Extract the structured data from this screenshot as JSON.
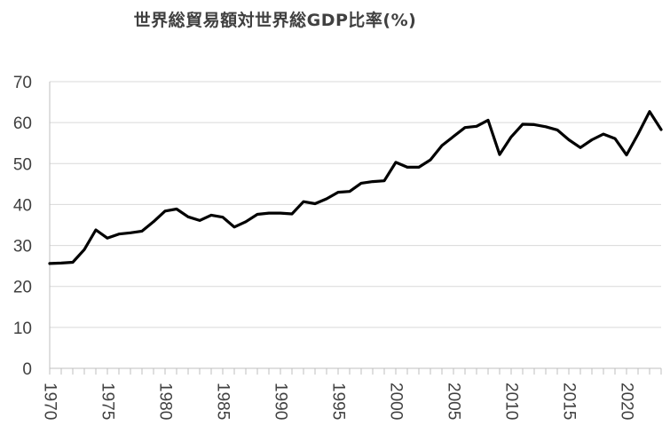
{
  "chart_data": {
    "type": "line",
    "title": "世界総貿易額対世界総GDP比率(%)",
    "xlabel": "",
    "ylabel": "",
    "ylim": [
      0,
      70
    ],
    "yticks": [
      0,
      10,
      20,
      30,
      40,
      50,
      60,
      70
    ],
    "xlim": [
      1970,
      2023
    ],
    "xtick_labels": [
      "1970",
      "1975",
      "1980",
      "1985",
      "1990",
      "1995",
      "2000",
      "2005",
      "2010",
      "2015",
      "2020"
    ],
    "grid": "horizontal",
    "series_color": "#000000",
    "x": [
      1970,
      1971,
      1972,
      1973,
      1974,
      1975,
      1976,
      1977,
      1978,
      1979,
      1980,
      1981,
      1982,
      1983,
      1984,
      1985,
      1986,
      1987,
      1988,
      1989,
      1990,
      1991,
      1992,
      1993,
      1994,
      1995,
      1996,
      1997,
      1998,
      1999,
      2000,
      2001,
      2002,
      2003,
      2004,
      2005,
      2006,
      2007,
      2008,
      2009,
      2010,
      2011,
      2012,
      2013,
      2014,
      2015,
      2016,
      2017,
      2018,
      2019,
      2020,
      2021,
      2022,
      2023
    ],
    "values": [
      25.6,
      25.7,
      25.9,
      29.0,
      33.8,
      31.8,
      32.8,
      33.1,
      33.5,
      35.8,
      38.4,
      38.9,
      37.0,
      36.1,
      37.4,
      36.9,
      34.5,
      35.8,
      37.6,
      37.9,
      37.9,
      37.7,
      40.7,
      40.2,
      41.4,
      43.0,
      43.2,
      45.2,
      45.6,
      45.8,
      50.3,
      49.1,
      49.1,
      50.9,
      54.4,
      56.6,
      58.8,
      59.1,
      60.6,
      52.2,
      56.5,
      59.6,
      59.5,
      59.0,
      58.2,
      55.8,
      53.9,
      55.8,
      57.2,
      56.1,
      52.1,
      57.2,
      62.7,
      58.3
    ]
  }
}
